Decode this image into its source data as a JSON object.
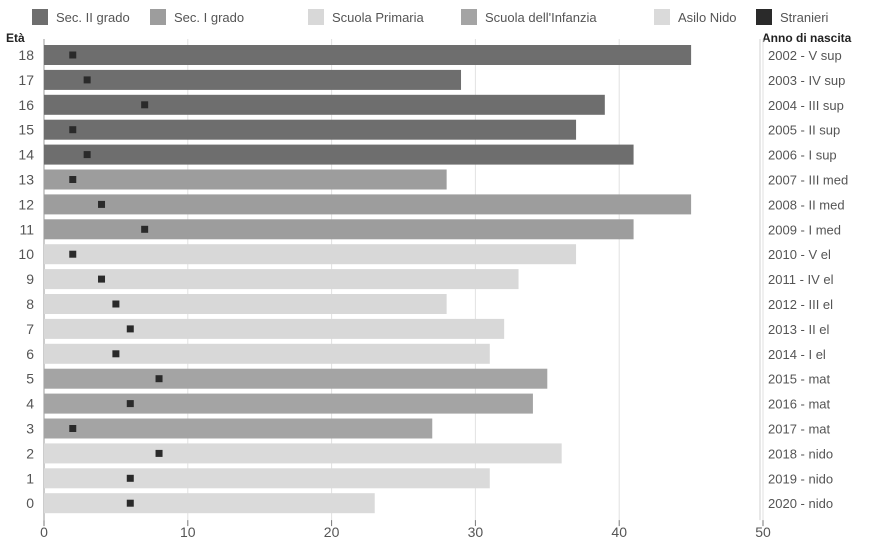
{
  "chart_data": {
    "type": "bar",
    "orientation": "horizontal",
    "y_left_title": "Età",
    "y_right_title": "Anno di nascita",
    "categories": [
      "18",
      "17",
      "16",
      "15",
      "14",
      "13",
      "12",
      "11",
      "10",
      "9",
      "8",
      "7",
      "6",
      "5",
      "4",
      "3",
      "2",
      "1",
      "0"
    ],
    "right_labels": [
      "2002 - V sup",
      "2003 - IV sup",
      "2004 - III sup",
      "2005 - II sup",
      "2006 - I sup",
      "2007 - III med",
      "2008 - II med",
      "2009 - I med",
      "2010 - V el",
      "2011 - IV el",
      "2012 - III el",
      "2013 - II el",
      "2014 - I el",
      "2015 - mat",
      "2016 - mat",
      "2017 - mat",
      "2018 - nido",
      "2019 - nido",
      "2020 - nido"
    ],
    "series": [
      {
        "name": "Sec. II grado",
        "color": "#6e6e6e"
      },
      {
        "name": "Sec. I grado",
        "color": "#9d9d9d"
      },
      {
        "name": "Scuola Primaria",
        "color": "#d8d8d8"
      },
      {
        "name": "Scuola dell'Infanzia",
        "color": "#a4a4a4"
      },
      {
        "name": "Asilo Nido",
        "color": "#dadada"
      },
      {
        "name": "Stranieri",
        "color": "#2a2a2a"
      }
    ],
    "totals": [
      45,
      29,
      39,
      37,
      41,
      28,
      45,
      41,
      37,
      33,
      28,
      32,
      31,
      35,
      34,
      27,
      36,
      31,
      23
    ],
    "stranieri": [
      2,
      3,
      7,
      2,
      3,
      2,
      4,
      7,
      2,
      4,
      5,
      6,
      5,
      8,
      6,
      2,
      8,
      6,
      6
    ],
    "bar_series_index": [
      0,
      0,
      0,
      0,
      0,
      1,
      1,
      1,
      2,
      2,
      2,
      2,
      2,
      3,
      3,
      3,
      4,
      4,
      4
    ],
    "x_ticks": [
      0,
      10,
      20,
      30,
      40,
      50
    ],
    "xlim": [
      0,
      50
    ],
    "grid": true,
    "legend_position": "top"
  }
}
